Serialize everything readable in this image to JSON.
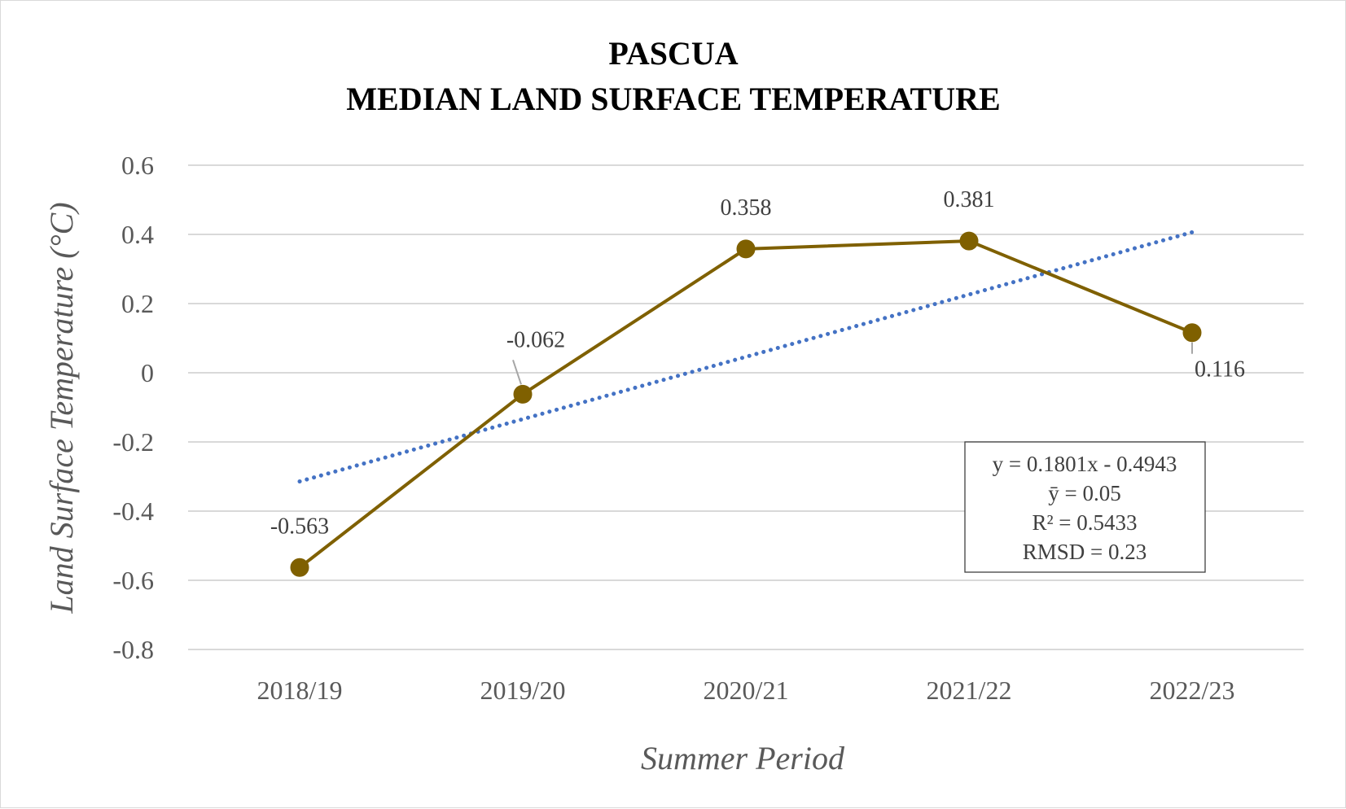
{
  "chart_data": {
    "type": "line",
    "title_lines": [
      "PASCUA",
      "MEDIAN LAND SURFACE TEMPERATURE"
    ],
    "xlabel": "Summer Period",
    "ylabel": "Land Surface Temperature (°C)",
    "categories": [
      "2018/19",
      "2019/20",
      "2020/21",
      "2021/22",
      "2022/23"
    ],
    "series": [
      {
        "values": [
          -0.563,
          -0.062,
          0.358,
          0.381,
          0.116
        ],
        "data_labels": [
          "-0.563",
          "-0.062",
          "0.358",
          "0.381",
          "0.116"
        ],
        "color": "#7f6000",
        "marker": "circle"
      }
    ],
    "trendline": {
      "type": "linear",
      "slope": 0.1801,
      "intercept": -0.4943,
      "color": "#4472c4",
      "style": "dotted"
    },
    "ylim": [
      -0.8,
      0.6
    ],
    "yticks": [
      "0.6",
      "0.4",
      "0.2",
      "0",
      "-0.2",
      "-0.4",
      "-0.6",
      "-0.8"
    ],
    "ytick_values": [
      0.6,
      0.4,
      0.2,
      0,
      -0.2,
      -0.4,
      -0.6,
      -0.8
    ],
    "grid": true,
    "legend": "none",
    "stats_box": {
      "lines": [
        "y = 0.1801x - 0.4943",
        "ȳ =  0.05",
        "R² = 0.5433",
        "RMSD = 0.23"
      ]
    }
  }
}
